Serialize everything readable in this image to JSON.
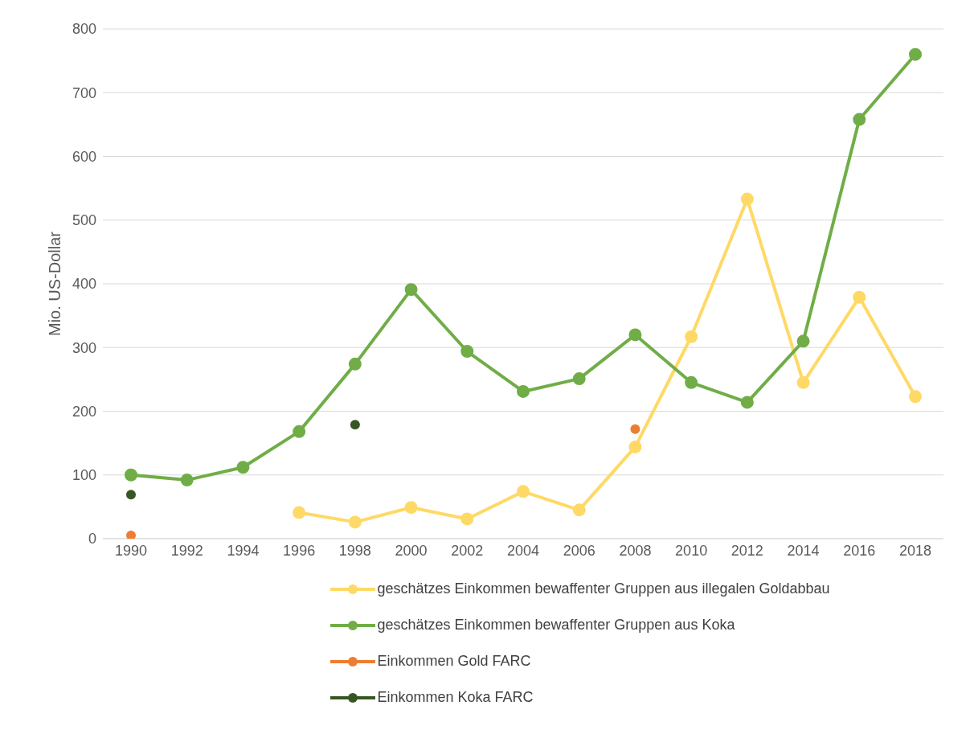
{
  "chart_data": {
    "type": "line",
    "ylabel": "Mio. US-Dollar",
    "categories": [
      "1990",
      "1992",
      "1994",
      "1996",
      "1998",
      "2000",
      "2002",
      "2004",
      "2006",
      "2008",
      "2010",
      "2012",
      "2014",
      "2016",
      "2018"
    ],
    "series": [
      {
        "name": "geschätzes Einkommen bewaffenter Gruppen aus illegalen Goldabbau",
        "color": "#ffd966",
        "values": [
          null,
          null,
          null,
          41,
          26,
          49,
          31,
          74,
          45,
          144,
          317,
          533,
          245,
          379,
          223
        ]
      },
      {
        "name": "geschätzes Einkommen bewaffenter Gruppen aus Koka",
        "color": "#70ad47",
        "values": [
          100,
          92,
          112,
          168,
          274,
          391,
          294,
          231,
          251,
          320,
          245,
          214,
          310,
          658,
          760
        ]
      },
      {
        "name": "Einkommen Gold FARC",
        "type": "scatter",
        "color": "#ed7d31",
        "values": [
          5,
          null,
          null,
          null,
          null,
          null,
          null,
          null,
          null,
          172,
          null,
          null,
          null,
          null,
          null
        ]
      },
      {
        "name": "Einkommen Koka FARC",
        "type": "scatter",
        "color": "#375623",
        "values": [
          69,
          null,
          null,
          null,
          179,
          null,
          null,
          null,
          null,
          null,
          null,
          null,
          null,
          null,
          null
        ]
      }
    ],
    "ylim": [
      0,
      800
    ],
    "yticks": [
      0,
      100,
      200,
      300,
      400,
      500,
      600,
      700,
      800
    ],
    "grid": "y",
    "legend": "bottom",
    "marker": "circle",
    "line_style": "solid"
  }
}
